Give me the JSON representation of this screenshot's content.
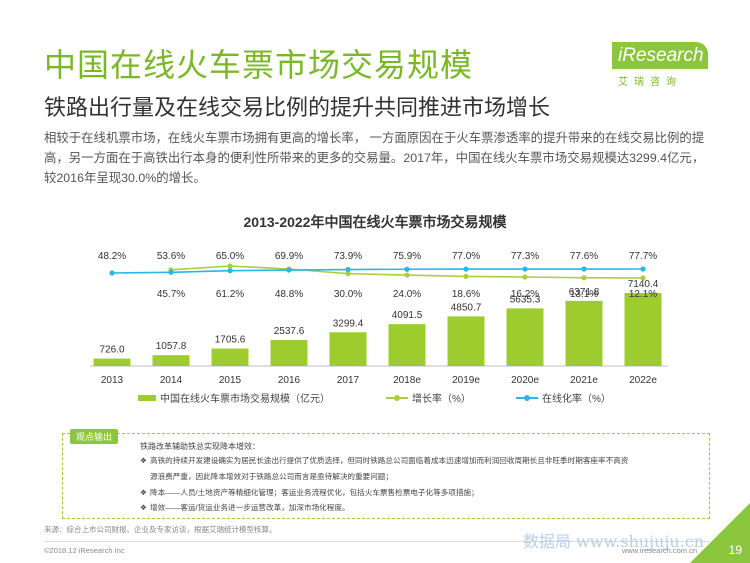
{
  "header": {
    "title": "中国在线火车票市场交易规模",
    "subtitle": "铁路出行量及在线交易比例的提升共同推进市场增长"
  },
  "logo": {
    "brand": "iResearch",
    "tagline": "艾瑞咨询"
  },
  "intro": "相较于在线机票市场，在线火车票市场拥有更高的增长率， 一方面原因在于火车票渗透率的提升带来的在线交易比例的提高，另一方面在于高铁出行本身的便利性所带来的更多的交易量。2017年，中国在线火车票市场交易规模达3299.4亿元，较2016年呈现30.0%的增长。",
  "chart_data": {
    "type": "bar",
    "title": "2013-2022年中国在线火车票市场交易规模",
    "categories": [
      "2013",
      "2014",
      "2015",
      "2016",
      "2017",
      "2018e",
      "2019e",
      "2020e",
      "2021e",
      "2022e"
    ],
    "series": [
      {
        "name": "中国在线火车票市场交易规模（亿元）",
        "type": "bar",
        "color": "#9ccc2e",
        "values": [
          726.0,
          1057.8,
          1705.6,
          2537.6,
          3299.4,
          4091.5,
          4850.7,
          5635.3,
          6371.8,
          7140.4
        ],
        "labels": [
          "726.0",
          "1057.8",
          "1705.6",
          "2537.6",
          "3299.4",
          "4091.5",
          "4850.7",
          "5635.3",
          "6371.8",
          "7140.4"
        ]
      },
      {
        "name": "增长率（%）",
        "type": "line",
        "color": "#a9cf3d",
        "values": [
          null,
          45.7,
          61.2,
          48.8,
          30.0,
          24.0,
          18.6,
          16.2,
          13.1,
          12.1
        ],
        "labels": [
          "",
          "45.7%",
          "61.2%",
          "48.8%",
          "30.0%",
          "24.0%",
          "18.6%",
          "16.2%",
          "13.1%",
          "12.1%"
        ]
      },
      {
        "name": "在线化率（%）",
        "type": "line",
        "color": "#29b6e8",
        "values": [
          48.2,
          53.6,
          65.0,
          69.9,
          73.9,
          75.9,
          77.0,
          77.3,
          77.6,
          77.7
        ],
        "labels": [
          "48.2%",
          "53.6%",
          "65.0%",
          "69.9%",
          "73.9%",
          "75.9%",
          "77.0%",
          "77.3%",
          "77.6%",
          "77.7%"
        ]
      }
    ],
    "legend_position": "bottom"
  },
  "notes": {
    "tab": "观点输出",
    "title": "铁路改革辅助铁总实现降本增效：",
    "items": [
      {
        "bullet": "❖",
        "text": "高铁的持续开发建设确实为居民长途出行提供了优质选择，但同时铁路总公司面临着成本迅速增加而利润回收周期长且非旺季时期客座率不高资"
      },
      {
        "bullet": "",
        "text": "源浪费严重，因此降本增效对于铁路总公司而言是亟待解决的重要问题；"
      },
      {
        "bullet": "❖",
        "text": "降本——人员/土地资产等精细化管理；客运业务流程优化，包括火车票售检票电子化等多项措施；"
      },
      {
        "bullet": "❖",
        "text": "增效——客运/货运业务进一步运营改革，加深市场化程度。"
      }
    ]
  },
  "footer": {
    "source": "来源：综合上市公司财报、企业及专家访谈，根据艾瑞统计模型核算。",
    "copyright": "©2018.12 iResearch Inc",
    "website": "www.iresearch.com.cn",
    "watermark": "数据局 www.shujuju.cn",
    "page_number": "19"
  }
}
